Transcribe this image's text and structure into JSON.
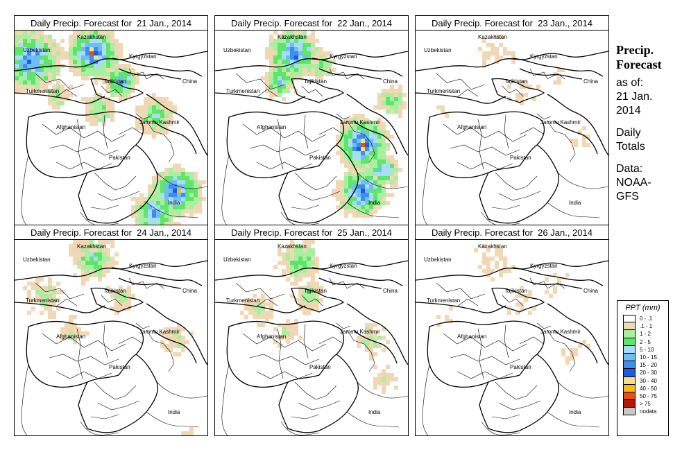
{
  "panels": [
    {
      "title": "Daily Precip. Forecast for  21 Jan., 2014",
      "intensity": 1.0,
      "pattern": "north-south"
    },
    {
      "title": "Daily Precip. Forecast for  22 Jan., 2014",
      "intensity": 1.0,
      "pattern": "kashmir-india"
    },
    {
      "title": "Daily Precip. Forecast for  23 Jan., 2014",
      "intensity": 0.35,
      "pattern": "light"
    },
    {
      "title": "Daily Precip. Forecast for  24 Jan., 2014",
      "intensity": 0.7,
      "pattern": "north"
    },
    {
      "title": "Daily Precip. Forecast for  25 Jan., 2014",
      "intensity": 0.7,
      "pattern": "north-central"
    },
    {
      "title": "Daily Precip. Forecast for  26 Jan., 2014",
      "intensity": 0.4,
      "pattern": "light"
    }
  ],
  "map_labels": {
    "kazakhstan": "Kazakhstan",
    "uzbekistan": "Uzbekistan",
    "kyrgyzstan": "Kyrgyzstan",
    "tajikistan": "Tajikistan",
    "china": "China",
    "turkmenistan": "Turkmenistan",
    "jammu_kashmir": "Jammu Kashmir",
    "afghanistan": "Afghanistan",
    "pakistan": "Pakistan",
    "india": "India"
  },
  "side": {
    "title_line1": "Precip.",
    "title_line2": "Forecast",
    "asof_line1": "as of:",
    "asof_line2": "21 Jan.",
    "asof_line3": "2014",
    "daily_line1": "Daily",
    "daily_line2": "Totals",
    "data_line1": "Data:",
    "data_line2": "NOAA-",
    "data_line3": "GFS"
  },
  "legend": {
    "title": "PPT (mm)",
    "items": [
      {
        "label": "0 - .1",
        "color": "#ffffff"
      },
      {
        "label": ".1 - 1",
        "color": "#f0d8b4"
      },
      {
        "label": "1 - 2",
        "color": "#a8f0a0"
      },
      {
        "label": "2 - 5",
        "color": "#5ee66a"
      },
      {
        "label": "5 - 10",
        "color": "#a8dcf8"
      },
      {
        "label": "10 - 15",
        "color": "#70bcf4"
      },
      {
        "label": "15 - 20",
        "color": "#3c8ef0"
      },
      {
        "label": "20 - 30",
        "color": "#1c5ce0"
      },
      {
        "label": "30 - 40",
        "color": "#f8e080"
      },
      {
        "label": "40 - 50",
        "color": "#f8b820"
      },
      {
        "label": "50 - 75",
        "color": "#e85010"
      },
      {
        "label": "> 75",
        "color": "#b01808"
      },
      {
        "label": "nodata",
        "color": "#c8c8c8"
      }
    ]
  }
}
